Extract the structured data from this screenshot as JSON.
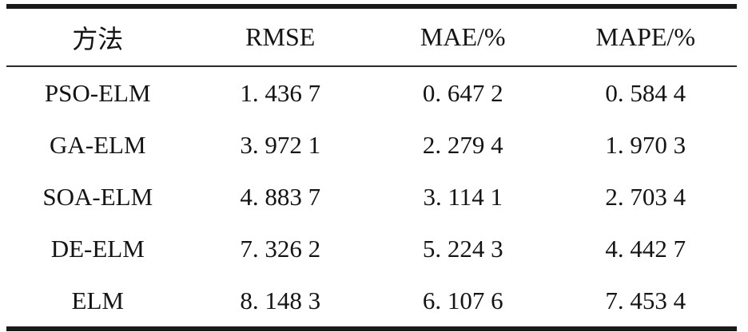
{
  "page": {
    "background": "#ffffff",
    "text_color": "#141414",
    "rule_color": "#1a1a1a"
  },
  "table": {
    "columns": [
      {
        "key": "method",
        "label": "方法"
      },
      {
        "key": "rmse",
        "label": "RMSE"
      },
      {
        "key": "mae",
        "label": "MAE/%"
      },
      {
        "key": "mape",
        "label": "MAPE/%"
      }
    ],
    "rows": [
      {
        "method": "PSO-ELM",
        "rmse": "1. 436 7",
        "mae": "0. 647 2",
        "mape": "0. 584 4"
      },
      {
        "method": "GA-ELM",
        "rmse": "3. 972 1",
        "mae": "2. 279 4",
        "mape": "1. 970 3"
      },
      {
        "method": "SOA-ELM",
        "rmse": "4. 883 7",
        "mae": "3. 114 1",
        "mape": "2. 703 4"
      },
      {
        "method": "DE-ELM",
        "rmse": "7. 326 2",
        "mae": "5. 224 3",
        "mape": "4. 442 7"
      },
      {
        "method": "ELM",
        "rmse": "8. 148 3",
        "mae": "6. 107 6",
        "mape": "7. 453 4"
      }
    ]
  },
  "chart_data": {
    "type": "table",
    "columns": [
      "方法",
      "RMSE",
      "MAE/%",
      "MAPE/%"
    ],
    "rows": [
      [
        "PSO-ELM",
        1.4367,
        0.6472,
        0.5844
      ],
      [
        "GA-ELM",
        3.9721,
        2.2794,
        1.9703
      ],
      [
        "SOA-ELM",
        4.8837,
        3.1141,
        2.7034
      ],
      [
        "DE-ELM",
        7.3262,
        5.2243,
        4.4427
      ],
      [
        "ELM",
        8.1483,
        6.1076,
        7.4534
      ]
    ]
  }
}
